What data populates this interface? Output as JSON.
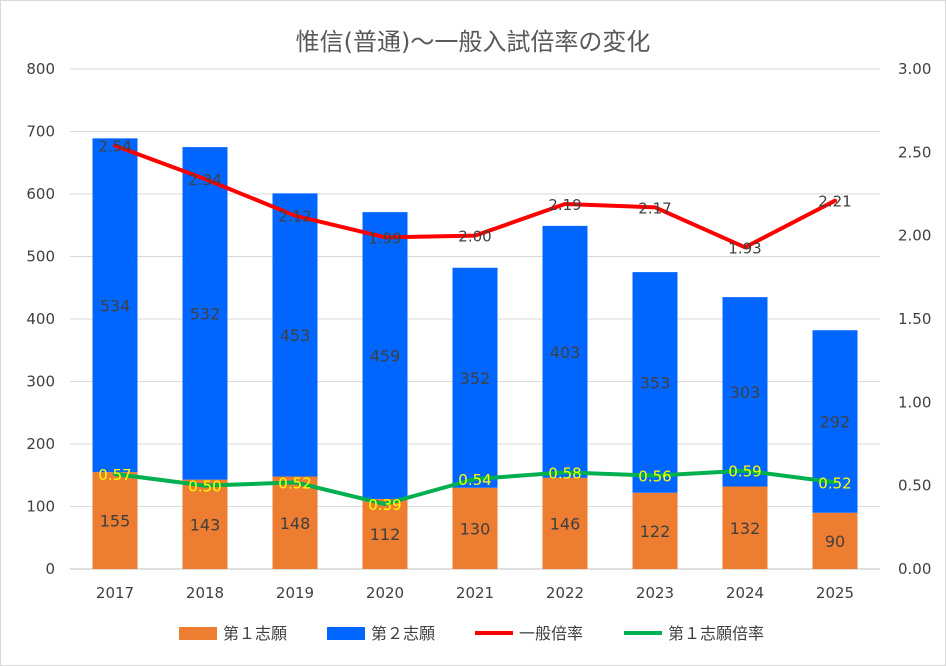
{
  "chart_data": {
    "type": "bar",
    "title": "惟信(普通)〜一般入試倍率の変化",
    "categories": [
      "2017",
      "2018",
      "2019",
      "2020",
      "2021",
      "2022",
      "2023",
      "2024",
      "2025"
    ],
    "y_left": {
      "lim": [
        0,
        800
      ],
      "ticks": [
        "0",
        "100",
        "200",
        "300",
        "400",
        "500",
        "600",
        "700",
        "800"
      ]
    },
    "y_right": {
      "lim": [
        0,
        3
      ],
      "ticks": [
        "0.00",
        "0.50",
        "1.00",
        "1.50",
        "2.00",
        "2.50",
        "3.00"
      ]
    },
    "grid": true,
    "legend_position": "bottom",
    "series": [
      {
        "name": "第１志願",
        "kind": "bar",
        "axis": "left",
        "color": "#ed7d31",
        "values": [
          155,
          143,
          148,
          112,
          130,
          146,
          122,
          132,
          90
        ],
        "labels": [
          "155",
          "143",
          "148",
          "112",
          "130",
          "146",
          "122",
          "132",
          "90"
        ]
      },
      {
        "name": "第２志願",
        "kind": "bar",
        "axis": "left",
        "color": "#0066ff",
        "values": [
          534,
          532,
          453,
          459,
          352,
          403,
          353,
          303,
          292
        ],
        "labels": [
          "534",
          "532",
          "453",
          "459",
          "352",
          "403",
          "353",
          "303",
          "292"
        ]
      },
      {
        "name": "一般倍率",
        "kind": "line",
        "axis": "right",
        "color": "#ff0000",
        "values": [
          2.54,
          2.34,
          2.12,
          1.99,
          2.0,
          2.19,
          2.17,
          1.93,
          2.21
        ],
        "labels": [
          "2.54",
          "2.34",
          "2.12",
          "1.99",
          "2.00",
          "2.19",
          "2.17",
          "1.93",
          "2.21"
        ]
      },
      {
        "name": "第１志願倍率",
        "kind": "line",
        "axis": "right",
        "color": "#00b050",
        "values": [
          0.57,
          0.5,
          0.52,
          0.39,
          0.54,
          0.58,
          0.56,
          0.59,
          0.52
        ],
        "labels": [
          "0.57",
          "0.50",
          "0.52",
          "0.39",
          "0.54",
          "0.58",
          "0.56",
          "0.59",
          "0.52"
        ]
      }
    ]
  }
}
